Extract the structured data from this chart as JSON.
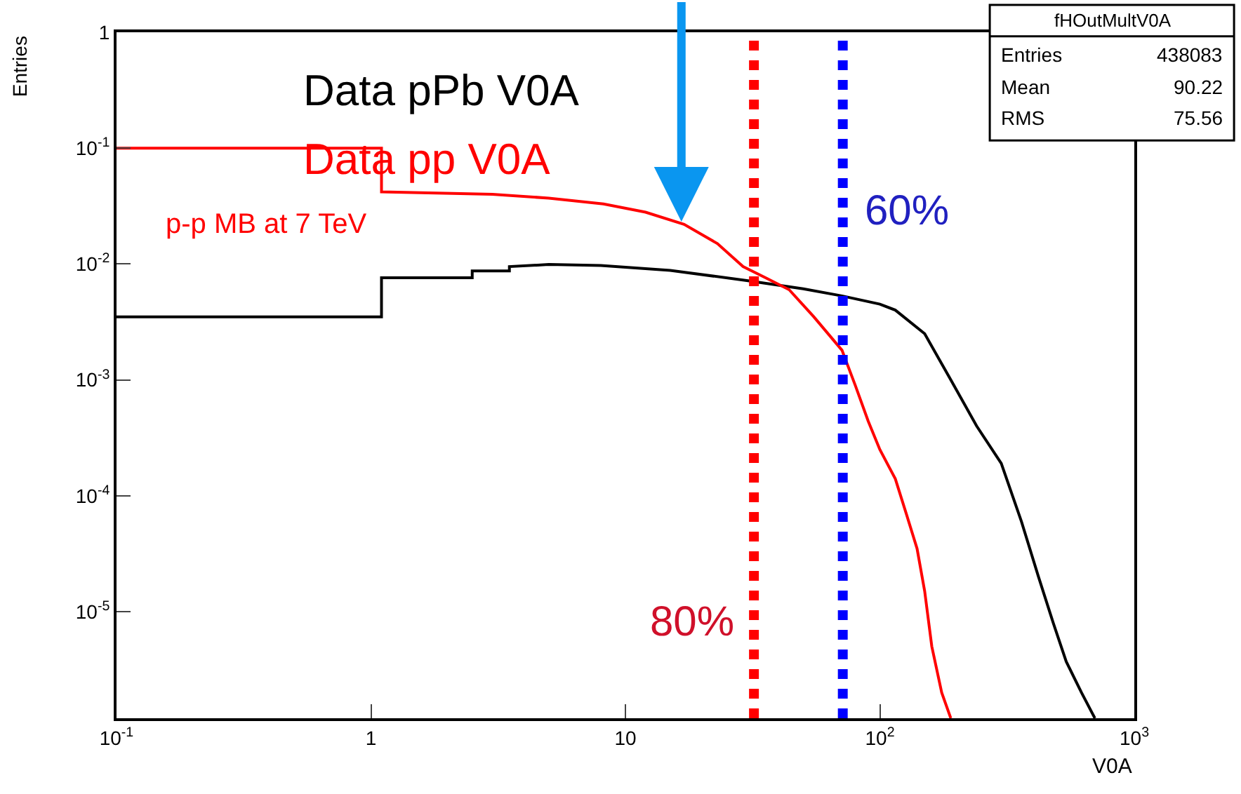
{
  "chart_data": {
    "type": "line",
    "xlabel": "V0A",
    "ylabel": "Entries",
    "log": "xy",
    "legend": false,
    "xlim": [
      0.1,
      1000
    ],
    "xticks": [
      {
        "value": 0.1,
        "label": "10$^{-1}$"
      },
      1,
      10,
      {
        "value": 100,
        "label": "10$^{2}$"
      },
      {
        "value": 1000,
        "label": "10$^{3}$"
      }
    ],
    "ylim": [
      1.2e-06,
      1
    ],
    "yticks": [
      1,
      {
        "value": 0.1,
        "label": "10$^{-1}$"
      },
      {
        "value": 0.01,
        "label": "10$^{-2}$"
      },
      {
        "value": 0.001,
        "label": "10$^{-3}$"
      },
      {
        "value": 0.0001,
        "label": "10$^{-4}$"
      },
      {
        "value": 1e-05,
        "label": "10$^{-5}$"
      }
    ],
    "series": [
      {
        "name": "Data pPb V0A",
        "color": "#000000",
        "x": [
          0.1,
          1.1,
          1.1,
          2.5,
          2.5,
          3.5,
          3.5,
          5,
          8,
          15,
          30,
          50,
          71,
          100,
          115,
          150,
          190,
          240,
          300,
          360,
          420,
          480,
          540,
          620,
          700
        ],
        "values": [
          0.0035,
          0.0035,
          0.0076,
          0.0076,
          0.0087,
          0.0087,
          0.0095,
          0.0099,
          0.0097,
          0.0088,
          0.0072,
          0.0061,
          0.0053,
          0.0045,
          0.004,
          0.0025,
          0.001,
          0.0004,
          0.00019,
          6e-05,
          2e-05,
          8e-06,
          3.7e-06,
          2e-06,
          1.2e-06
        ]
      },
      {
        "name": "Data pp V0A",
        "color": "#ff0000",
        "x": [
          0.1,
          1.1,
          1.1,
          3,
          5,
          8.2,
          12,
          17,
          23,
          29,
          36,
          44,
          55,
          71,
          80,
          90,
          100,
          115,
          127,
          140,
          150,
          160,
          175,
          190
        ],
        "values": [
          0.1,
          0.1,
          0.042,
          0.04,
          0.037,
          0.033,
          0.028,
          0.022,
          0.015,
          0.0095,
          0.0075,
          0.006,
          0.0035,
          0.0018,
          0.0009,
          0.00044,
          0.00025,
          0.00014,
          7e-05,
          3.5e-05,
          1.5e-05,
          5e-06,
          2e-06,
          1.2e-06
        ]
      }
    ],
    "ref_lines": [
      {
        "axis": "x",
        "value": 32,
        "color": "#ff0000",
        "line_style": "dotted"
      },
      {
        "axis": "x",
        "value": 71.5,
        "color": "#0000ff",
        "line_style": "dotted"
      }
    ],
    "annotations": [
      "p-p MB at 7 TeV",
      "80%",
      "60%",
      "fHOutMultV0A",
      "Entries 438083",
      "Mean 90.22",
      "RMS 75.56"
    ]
  }
}
